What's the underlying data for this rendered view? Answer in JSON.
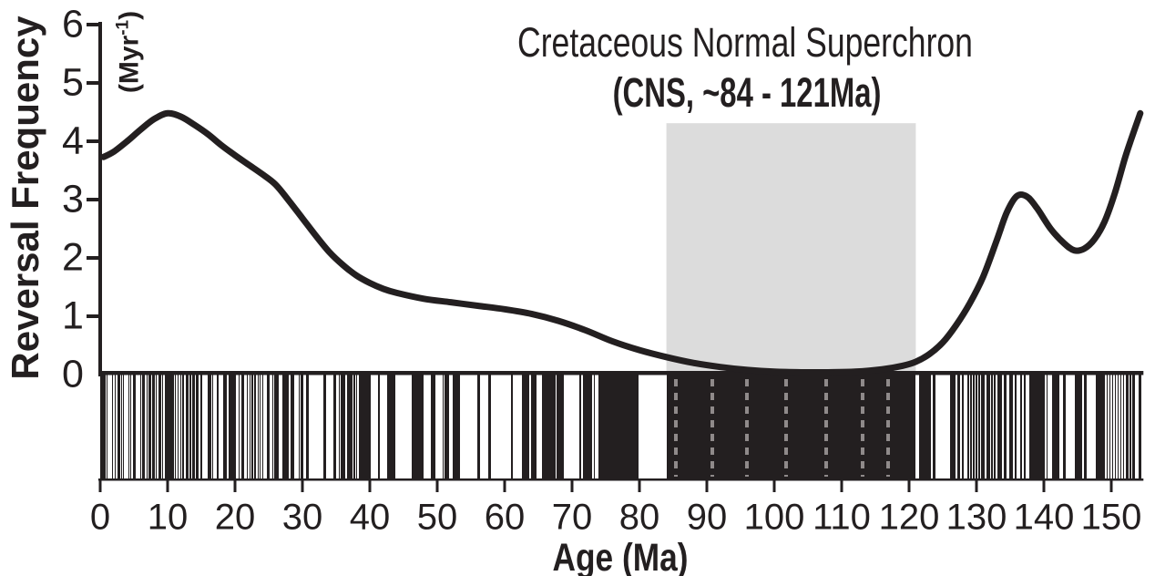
{
  "chart_data": {
    "type": "line",
    "title": "Cretaceous Normal Superchron",
    "subtitle": "(CNS, ~84 - 121Ma)",
    "xlabel": "Age (Ma)",
    "ylabel": "Reversal Frequency",
    "ylabel_unit": {
      "open": "(Myr",
      "sup": "-1",
      "close": ")"
    },
    "xlim": [
      0,
      154.5
    ],
    "ylim": [
      0,
      6
    ],
    "xticks": [
      0,
      10,
      20,
      30,
      40,
      50,
      60,
      70,
      80,
      90,
      100,
      110,
      120,
      130,
      140,
      150
    ],
    "yticks": [
      0,
      1,
      2,
      3,
      4,
      5,
      6
    ],
    "grid": false,
    "legend": false,
    "colors": {
      "ink": "#231f20",
      "band": "#dcdcdc",
      "dashes": "#8f8a8a"
    },
    "cns_band": {
      "start_ma": 84,
      "end_ma": 121,
      "top_value": 4.31
    },
    "curve": [
      [
        0.5,
        3.73
      ],
      [
        2,
        3.82
      ],
      [
        4,
        4.0
      ],
      [
        6,
        4.2
      ],
      [
        8,
        4.38
      ],
      [
        10,
        4.48
      ],
      [
        12,
        4.42
      ],
      [
        14,
        4.28
      ],
      [
        16,
        4.12
      ],
      [
        18,
        3.93
      ],
      [
        20,
        3.76
      ],
      [
        22,
        3.6
      ],
      [
        24,
        3.44
      ],
      [
        26,
        3.26
      ],
      [
        28,
        2.98
      ],
      [
        30,
        2.68
      ],
      [
        32,
        2.38
      ],
      [
        34,
        2.1
      ],
      [
        36,
        1.88
      ],
      [
        38,
        1.7
      ],
      [
        40,
        1.57
      ],
      [
        42,
        1.47
      ],
      [
        44,
        1.4
      ],
      [
        48,
        1.3
      ],
      [
        52,
        1.24
      ],
      [
        56,
        1.18
      ],
      [
        60,
        1.12
      ],
      [
        64,
        1.04
      ],
      [
        68,
        0.92
      ],
      [
        72,
        0.76
      ],
      [
        76,
        0.57
      ],
      [
        80,
        0.42
      ],
      [
        84,
        0.3
      ],
      [
        88,
        0.2
      ],
      [
        92,
        0.13
      ],
      [
        96,
        0.08
      ],
      [
        100,
        0.05
      ],
      [
        104,
        0.04
      ],
      [
        108,
        0.04
      ],
      [
        112,
        0.05
      ],
      [
        116,
        0.09
      ],
      [
        119,
        0.15
      ],
      [
        121,
        0.22
      ],
      [
        123,
        0.35
      ],
      [
        125,
        0.55
      ],
      [
        127,
        0.85
      ],
      [
        129,
        1.22
      ],
      [
        131,
        1.68
      ],
      [
        133,
        2.3
      ],
      [
        134.5,
        2.78
      ],
      [
        136,
        3.06
      ],
      [
        137.5,
        3.05
      ],
      [
        139,
        2.85
      ],
      [
        141,
        2.5
      ],
      [
        143,
        2.25
      ],
      [
        144.5,
        2.13
      ],
      [
        146,
        2.16
      ],
      [
        147.5,
        2.32
      ],
      [
        149,
        2.62
      ],
      [
        150.5,
        3.1
      ],
      [
        152,
        3.7
      ],
      [
        153,
        4.05
      ],
      [
        154.3,
        4.48
      ]
    ],
    "polarity_normal_intervals_ma": [
      [
        0,
        0.78
      ],
      [
        0.99,
        1.07
      ],
      [
        1.77,
        1.95
      ],
      [
        2.14,
        2.15
      ],
      [
        2.58,
        3.04
      ],
      [
        3.11,
        3.22
      ],
      [
        3.33,
        3.58
      ],
      [
        4.18,
        4.29
      ],
      [
        4.48,
        4.62
      ],
      [
        4.8,
        4.89
      ],
      [
        4.98,
        5.23
      ],
      [
        5.89,
        6.14
      ],
      [
        6.27,
        6.57
      ],
      [
        6.94,
        7.09
      ],
      [
        7.14,
        7.17
      ],
      [
        7.34,
        7.38
      ],
      [
        7.43,
        7.56
      ],
      [
        7.65,
        8.07
      ],
      [
        8.23,
        8.26
      ],
      [
        8.7,
        9.03
      ],
      [
        9.23,
        9.31
      ],
      [
        9.58,
        9.64
      ],
      [
        9.74,
        9.88
      ],
      [
        9.92,
        10.95
      ],
      [
        11.05,
        11.1
      ],
      [
        11.48,
        11.53
      ],
      [
        11.94,
        12.08
      ],
      [
        12.18,
        12.4
      ],
      [
        12.68,
        12.71
      ],
      [
        12.78,
        12.82
      ],
      [
        12.99,
        13.14
      ],
      [
        13.3,
        13.51
      ],
      [
        13.7,
        14.08
      ],
      [
        14.18,
        14.61
      ],
      [
        14.8,
        14.89
      ],
      [
        15.03,
        15.16
      ],
      [
        16.01,
        16.29
      ],
      [
        16.33,
        16.49
      ],
      [
        16.56,
        16.73
      ],
      [
        17.28,
        17.62
      ],
      [
        18.28,
        18.78
      ],
      [
        19.05,
        20.13
      ],
      [
        20.52,
        20.73
      ],
      [
        21,
        21.32
      ],
      [
        21.77,
        21.86
      ],
      [
        22.15,
        22.25
      ],
      [
        22.46,
        22.49
      ],
      [
        22.59,
        22.75
      ],
      [
        22.8,
        23.07
      ],
      [
        23.35,
        23.54
      ],
      [
        23.68,
        23.8
      ],
      [
        24,
        24.12
      ],
      [
        24.73,
        24.78
      ],
      [
        24.84,
        25.18
      ],
      [
        25.5,
        25.65
      ],
      [
        25.82,
        25.95
      ],
      [
        25.99,
        26.55
      ],
      [
        27.03,
        27.97
      ],
      [
        28.28,
        28.51
      ],
      [
        28.58,
        28.75
      ],
      [
        29.4,
        29.66
      ],
      [
        29.77,
        30.1
      ],
      [
        30.48,
        30.94
      ],
      [
        33.06,
        33.55
      ],
      [
        34.66,
        34.94
      ],
      [
        35.34,
        35.53
      ],
      [
        35.69,
        36.34
      ],
      [
        36.62,
        37.47
      ],
      [
        37.6,
        37.85
      ],
      [
        37.92,
        38.11
      ],
      [
        38.43,
        39.55
      ],
      [
        39.63,
        40.13
      ],
      [
        41.26,
        41.52
      ],
      [
        42.54,
        43.79
      ],
      [
        46.26,
        47.91
      ],
      [
        49.04,
        49.71
      ],
      [
        50.78,
        50.95
      ],
      [
        51.05,
        51.74
      ],
      [
        52.36,
        52.66
      ],
      [
        52.76,
        52.8
      ],
      [
        52.9,
        53.35
      ],
      [
        55.9,
        56.39
      ],
      [
        57.55,
        57.91
      ],
      [
        60.92,
        61.28
      ],
      [
        62.5,
        63.63
      ],
      [
        63.98,
        64.75
      ],
      [
        65.58,
        67.61
      ],
      [
        67.74,
        68.74
      ],
      [
        71.07,
        71.34
      ],
      [
        71.59,
        73
      ],
      [
        73.29,
        73.37
      ],
      [
        73.9,
        79.9
      ],
      [
        84,
        121
      ],
      [
        121.45,
        123.2
      ],
      [
        123.5,
        123.9
      ],
      [
        126.1,
        126.9
      ],
      [
        127.2,
        127.5
      ],
      [
        127.8,
        128.1
      ],
      [
        128.6,
        128.9
      ],
      [
        129.1,
        129.3
      ],
      [
        129.5,
        129.7
      ],
      [
        129.9,
        130.1
      ],
      [
        130.3,
        130.5
      ],
      [
        130.7,
        131.2
      ],
      [
        131.5,
        132
      ],
      [
        132.1,
        132.4
      ],
      [
        132.5,
        132.8
      ],
      [
        133.1,
        133.8
      ],
      [
        134.1,
        134.4
      ],
      [
        134.8,
        135.4
      ],
      [
        135.7,
        136
      ],
      [
        136.5,
        136.7
      ],
      [
        137,
        137.3
      ],
      [
        137.8,
        140.1
      ],
      [
        140.4,
        140.6
      ],
      [
        141.2,
        142.3
      ],
      [
        142.9,
        143.2
      ],
      [
        144.6,
        145.7
      ],
      [
        146,
        146.3
      ],
      [
        147.7,
        149.1
      ],
      [
        149.3,
        149.5
      ],
      [
        149.7,
        149.9
      ],
      [
        150.1,
        150.3
      ],
      [
        150.5,
        150.7
      ],
      [
        150.9,
        151.1
      ],
      [
        151.3,
        151.5
      ],
      [
        151.7,
        151.9
      ],
      [
        152.1,
        152.5
      ],
      [
        152.7,
        153
      ],
      [
        153.1,
        153.5
      ],
      [
        154,
        154.5
      ]
    ],
    "cns_dashed_line_ages_ma": [
      85.4,
      90.8,
      95.9,
      101.8,
      107.7,
      113.1,
      116.9
    ]
  }
}
